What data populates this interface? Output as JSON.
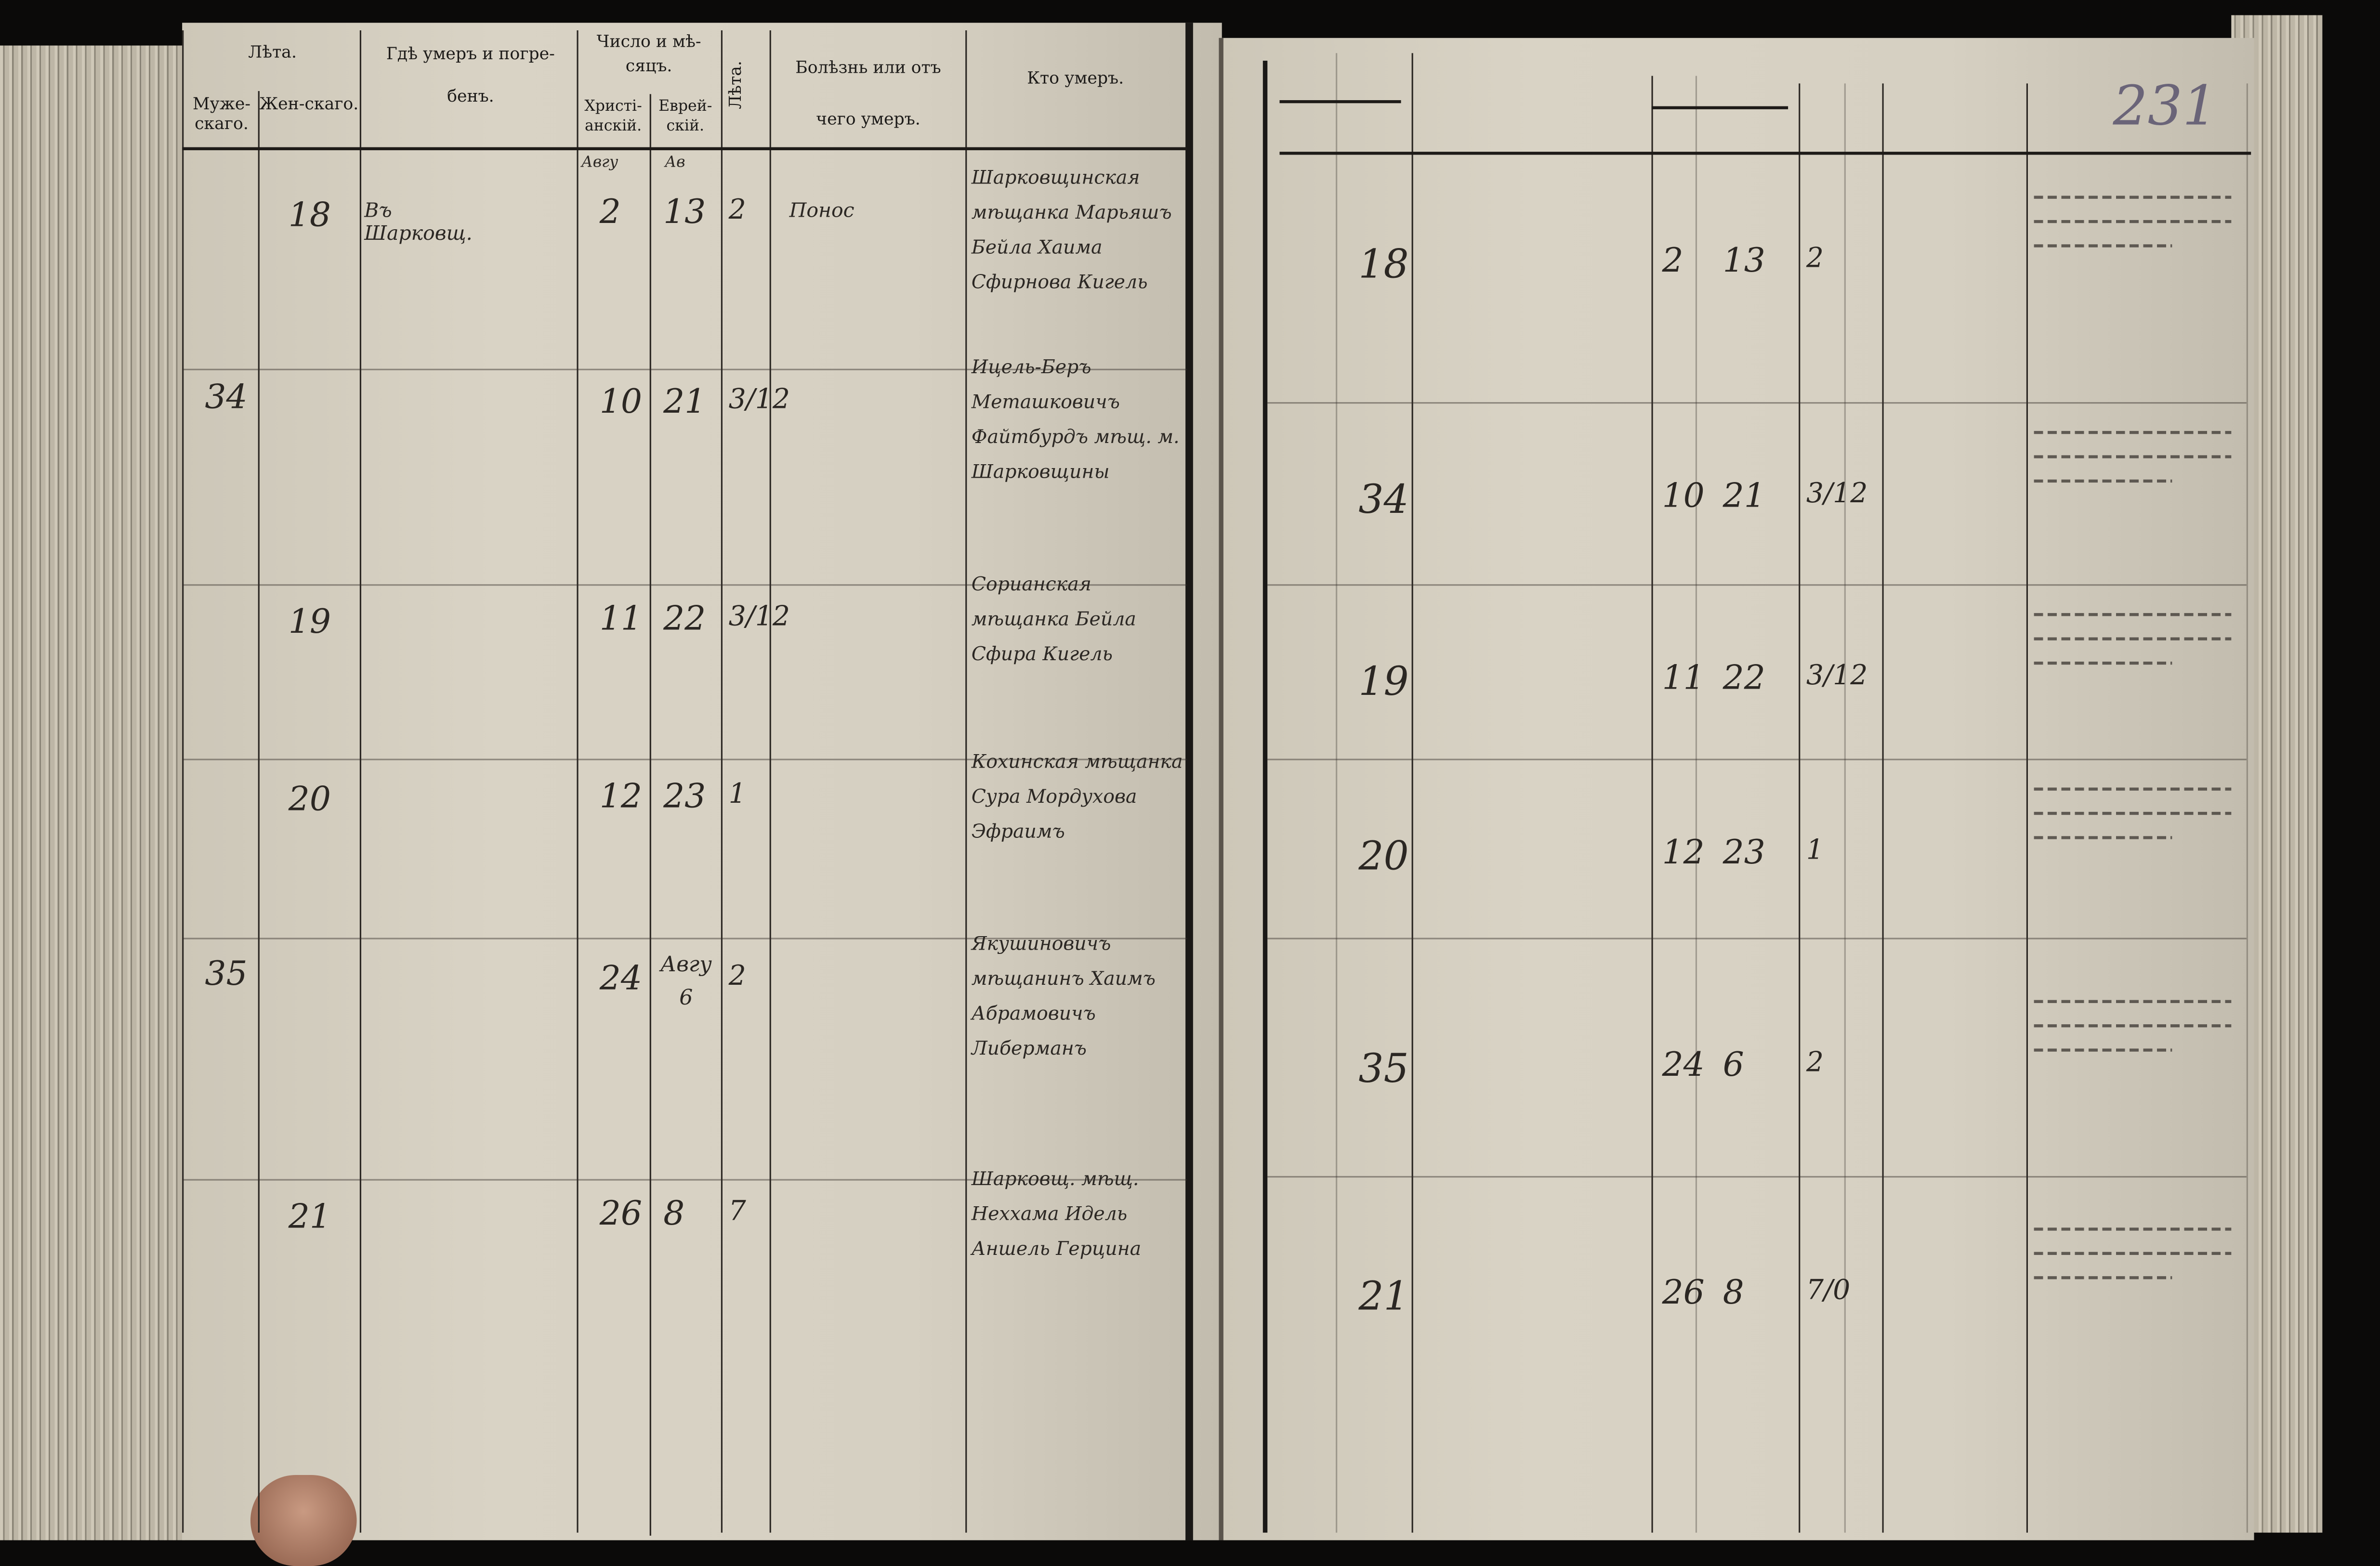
{
  "header_left": {
    "years": "Лѣта.",
    "male": "Муже-скаго.",
    "female": "Жен-скаго.",
    "place": "Гдѣ умеръ и погре-бенъ.",
    "date": "Число и мѣ-сяцъ.",
    "christian": "Христі-анскій.",
    "jewish": "Еврей-скій.",
    "age": "Лѣта.",
    "disease": "Болѣзнь или отъ чего умеръ.",
    "who": "Кто умеръ."
  },
  "page_number": "231",
  "months": {
    "christian": "Авгу",
    "jewish": "Ав"
  },
  "entries": [
    {
      "male": "",
      "female": "18",
      "place": "Въ Шарковщ.",
      "christian_day": "2",
      "jewish_day": "13",
      "age": "2",
      "disease": "Понос",
      "who": "Шарковщинская мѣщанка Марьяшъ Бейла Хаима Сфирнова Кигель"
    },
    {
      "male": "34",
      "female": "",
      "place": "",
      "christian_day": "10",
      "jewish_day": "21",
      "age": "3/12",
      "disease": "",
      "who": "Ицель-Беръ Меташковичъ Файтбурдъ мѣщ. м. Шарковщины"
    },
    {
      "male": "",
      "female": "19",
      "place": "",
      "christian_day": "11",
      "jewish_day": "22",
      "age": "3/12",
      "disease": "",
      "who": "Сорианская мѣщанка Бейла Сфира Кигель"
    },
    {
      "male": "",
      "female": "20",
      "place": "",
      "christian_day": "12",
      "jewish_day": "23",
      "age": "1",
      "disease": "",
      "who": "Кохинская мѣщанка Сура Мордухова Эфраимъ"
    },
    {
      "male": "35",
      "female": "",
      "place": "",
      "christian_day": "24",
      "jewish_day": "Авгу 6",
      "age": "2",
      "disease": "",
      "who": "Якушиновичъ мѣщанинъ Хаимъ Абрамовичъ Либерманъ"
    },
    {
      "male": "",
      "female": "21",
      "place": "",
      "christian_day": "26",
      "jewish_day": "8",
      "age": "7",
      "disease": "",
      "who": "Шарковщ. мѣщ. Неххама Идель Аншель Герцина"
    }
  ],
  "right_entries": [
    {
      "number": "18",
      "day1": "2",
      "day2": "13",
      "age": "2"
    },
    {
      "number": "34",
      "day1": "10",
      "day2": "21",
      "age": "3/12"
    },
    {
      "number": "19",
      "day1": "11",
      "day2": "22",
      "age": "3/12"
    },
    {
      "number": "20",
      "day1": "12",
      "day2": "23",
      "age": "1"
    },
    {
      "number": "35",
      "day1": "24",
      "day2": "6",
      "age": "2"
    },
    {
      "number": "21",
      "day1": "26",
      "day2": "8",
      "age": "7/0"
    }
  ],
  "colors": {
    "paper": "#d6d0c2",
    "ink": "#2b2723",
    "background": "#0b0a09"
  }
}
